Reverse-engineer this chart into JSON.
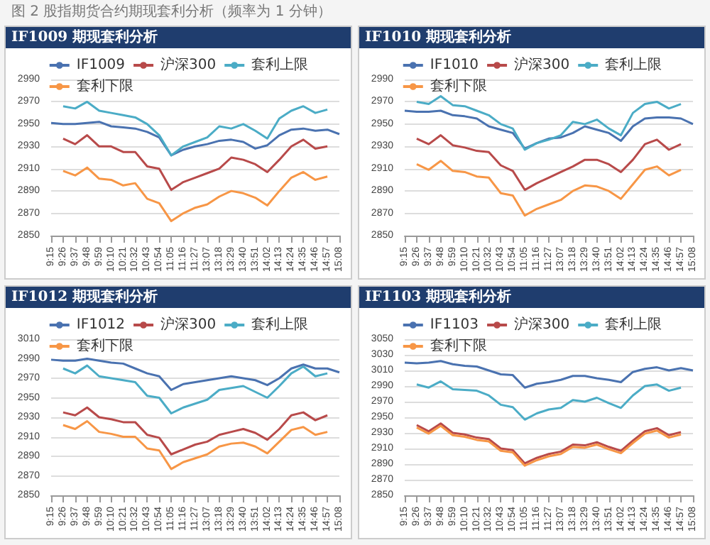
{
  "chart_data": [
    {
      "type": "other",
      "title": "图 2 股指期货合约期现套利分析（频率为 1 分钟）"
    },
    {
      "type": "line",
      "title": "IF1009 期现套利分析",
      "categories": [
        "9:15",
        "9:26",
        "9:37",
        "9:48",
        "9:59",
        "10:10",
        "10:21",
        "10:32",
        "10:43",
        "10:54",
        "11:05",
        "11:16",
        "11:27",
        "13:07",
        "13:18",
        "13:29",
        "13:40",
        "13:51",
        "14:02",
        "14:13",
        "14:24",
        "14:35",
        "14:46",
        "14:57",
        "15:08"
      ],
      "ylim": [
        2850,
        2990
      ],
      "yticks": [
        2850,
        2870,
        2890,
        2910,
        2930,
        2950,
        2970,
        2990
      ],
      "grid": "y",
      "legend": "top",
      "marker": "none",
      "line_style": "solid",
      "series": [
        {
          "name": "IF1009",
          "color": "#4a72b0",
          "values": [
            2951,
            2950,
            2950,
            2951,
            2952,
            2948,
            2947,
            2946,
            2943,
            2938,
            2922,
            2927,
            2930,
            2932,
            2935,
            2936,
            2934,
            2928,
            2931,
            2940,
            2945,
            2946,
            2944,
            2945,
            2941
          ]
        },
        {
          "name": "沪深300",
          "color": "#b84a4a",
          "values": [
            null,
            2937,
            2932,
            2940,
            2930,
            2930,
            2925,
            2925,
            2912,
            2910,
            2891,
            2898,
            2902,
            2906,
            2910,
            2920,
            2918,
            2914,
            2907,
            2918,
            2930,
            2936,
            2928,
            2930,
            null
          ]
        },
        {
          "name": "套利上限",
          "color": "#4bacc6",
          "values": [
            null,
            2966,
            2964,
            2970,
            2962,
            2960,
            2958,
            2956,
            2950,
            2940,
            2922,
            2930,
            2934,
            2938,
            2948,
            2946,
            2950,
            2944,
            2937,
            2955,
            2962,
            2966,
            2960,
            2963,
            null
          ]
        },
        {
          "name": "套利下限",
          "color": "#f79646",
          "values": [
            null,
            2908,
            2904,
            2911,
            2901,
            2900,
            2895,
            2897,
            2883,
            2879,
            2863,
            2870,
            2875,
            2878,
            2885,
            2890,
            2888,
            2884,
            2877,
            2890,
            2902,
            2907,
            2900,
            2903,
            null
          ]
        }
      ]
    },
    {
      "type": "line",
      "title": "IF1010 期现套利分析",
      "categories": [
        "9:15",
        "9:26",
        "9:37",
        "9:48",
        "9:59",
        "10:10",
        "10:21",
        "10:32",
        "10:43",
        "10:54",
        "11:05",
        "11:16",
        "11:27",
        "13:07",
        "13:18",
        "13:29",
        "13:40",
        "13:51",
        "14:02",
        "14:13",
        "14:24",
        "14:35",
        "14:46",
        "14:57",
        "15:08"
      ],
      "ylim": [
        2850,
        2990
      ],
      "yticks": [
        2850,
        2870,
        2890,
        2910,
        2930,
        2950,
        2970,
        2990
      ],
      "grid": "y",
      "legend": "top",
      "marker": "none",
      "line_style": "solid",
      "series": [
        {
          "name": "IF1010",
          "color": "#4a72b0",
          "values": [
            2962,
            2961,
            2961,
            2962,
            2958,
            2957,
            2955,
            2948,
            2945,
            2942,
            2928,
            2933,
            2937,
            2938,
            2942,
            2948,
            2945,
            2942,
            2935,
            2948,
            2955,
            2956,
            2956,
            2955,
            2950
          ]
        },
        {
          "name": "沪深300",
          "color": "#b84a4a",
          "values": [
            null,
            2937,
            2932,
            2940,
            2931,
            2929,
            2926,
            2925,
            2913,
            2908,
            2891,
            2897,
            2902,
            2907,
            2912,
            2918,
            2918,
            2914,
            2907,
            2918,
            2932,
            2936,
            2927,
            2932,
            null
          ]
        },
        {
          "name": "套利上限",
          "color": "#4bacc6",
          "values": [
            null,
            2970,
            2968,
            2975,
            2967,
            2966,
            2962,
            2958,
            2950,
            2946,
            2927,
            2933,
            2936,
            2940,
            2952,
            2950,
            2954,
            2946,
            2940,
            2960,
            2968,
            2970,
            2964,
            2968,
            null
          ]
        },
        {
          "name": "套利下限",
          "color": "#f79646",
          "values": [
            null,
            2914,
            2909,
            2917,
            2908,
            2907,
            2903,
            2902,
            2888,
            2886,
            2868,
            2874,
            2878,
            2882,
            2890,
            2895,
            2894,
            2890,
            2883,
            2896,
            2909,
            2912,
            2904,
            2909,
            null
          ]
        }
      ]
    },
    {
      "type": "line",
      "title": "IF1012 期现套利分析",
      "categories": [
        "9:15",
        "9:26",
        "9:37",
        "9:48",
        "9:59",
        "10:10",
        "10:21",
        "10:32",
        "10:43",
        "10:54",
        "11:05",
        "11:16",
        "11:27",
        "13:07",
        "13:18",
        "13:29",
        "13:40",
        "13:51",
        "14:02",
        "14:13",
        "14:24",
        "14:35",
        "14:46",
        "14:57",
        "15:08"
      ],
      "ylim": [
        2850,
        3010
      ],
      "yticks": [
        2850,
        2870,
        2890,
        2910,
        2930,
        2950,
        2970,
        2990,
        3010
      ],
      "grid": "y",
      "legend": "top",
      "marker": "none",
      "line_style": "solid",
      "series": [
        {
          "name": "IF1012",
          "color": "#4a72b0",
          "values": [
            2989,
            2988,
            2988,
            2990,
            2988,
            2986,
            2985,
            2980,
            2975,
            2972,
            2958,
            2964,
            2966,
            2968,
            2970,
            2972,
            2970,
            2968,
            2963,
            2970,
            2980,
            2984,
            2980,
            2980,
            2976
          ]
        },
        {
          "name": "沪深300",
          "color": "#b84a4a",
          "values": [
            null,
            2935,
            2932,
            2940,
            2930,
            2928,
            2925,
            2925,
            2912,
            2909,
            2892,
            2897,
            2902,
            2905,
            2912,
            2915,
            2918,
            2914,
            2907,
            2918,
            2932,
            2935,
            2927,
            2932,
            null
          ]
        },
        {
          "name": "套利上限",
          "color": "#4bacc6",
          "values": [
            null,
            2980,
            2975,
            2983,
            2972,
            2970,
            2968,
            2966,
            2952,
            2950,
            2934,
            2940,
            2944,
            2948,
            2958,
            2960,
            2962,
            2956,
            2950,
            2962,
            2975,
            2982,
            2972,
            2975,
            null
          ]
        },
        {
          "name": "套利下限",
          "color": "#f79646",
          "values": [
            null,
            2922,
            2918,
            2926,
            2915,
            2913,
            2910,
            2910,
            2898,
            2896,
            2877,
            2884,
            2888,
            2892,
            2900,
            2903,
            2904,
            2900,
            2893,
            2905,
            2917,
            2920,
            2912,
            2915,
            null
          ]
        }
      ]
    },
    {
      "type": "line",
      "title": "IF1103 期现套利分析",
      "categories": [
        "9:15",
        "9:26",
        "9:37",
        "9:48",
        "9:59",
        "10:10",
        "10:21",
        "10:32",
        "10:43",
        "10:54",
        "11:05",
        "11:16",
        "11:27",
        "13:07",
        "13:18",
        "13:29",
        "13:40",
        "13:51",
        "14:02",
        "14:13",
        "14:24",
        "14:35",
        "14:46",
        "14:57",
        "15:08"
      ],
      "ylim": [
        2850,
        3050
      ],
      "yticks": [
        2850,
        2870,
        2890,
        2910,
        2930,
        2950,
        2970,
        2990,
        3010,
        3030,
        3050
      ],
      "grid": "y",
      "legend": "top",
      "marker": "none",
      "line_style": "solid",
      "series": [
        {
          "name": "IF1103",
          "color": "#4a72b0",
          "values": [
            3020,
            3019,
            3020,
            3022,
            3018,
            3016,
            3015,
            3010,
            3005,
            3004,
            2988,
            2993,
            2995,
            2998,
            3003,
            3003,
            3000,
            2998,
            2995,
            3008,
            3012,
            3014,
            3010,
            3013,
            3010
          ]
        },
        {
          "name": "沪深300",
          "color": "#b84a4a",
          "values": [
            null,
            2940,
            2932,
            2942,
            2930,
            2928,
            2924,
            2922,
            2910,
            2908,
            2891,
            2898,
            2903,
            2906,
            2915,
            2914,
            2918,
            2912,
            2907,
            2920,
            2932,
            2936,
            2927,
            2931,
            null
          ]
        },
        {
          "name": "套利上限",
          "color": "#4bacc6",
          "values": [
            null,
            2992,
            2988,
            2996,
            2986,
            2985,
            2984,
            2978,
            2966,
            2963,
            2947,
            2955,
            2960,
            2962,
            2972,
            2970,
            2975,
            2968,
            2962,
            2978,
            2990,
            2992,
            2984,
            2988,
            null
          ]
        },
        {
          "name": "套利下限",
          "color": "#f79646",
          "values": [
            null,
            2937,
            2929,
            2939,
            2927,
            2925,
            2921,
            2919,
            2907,
            2905,
            2888,
            2895,
            2900,
            2903,
            2912,
            2911,
            2915,
            2909,
            2904,
            2917,
            2929,
            2933,
            2924,
            2928,
            null
          ]
        }
      ]
    }
  ]
}
